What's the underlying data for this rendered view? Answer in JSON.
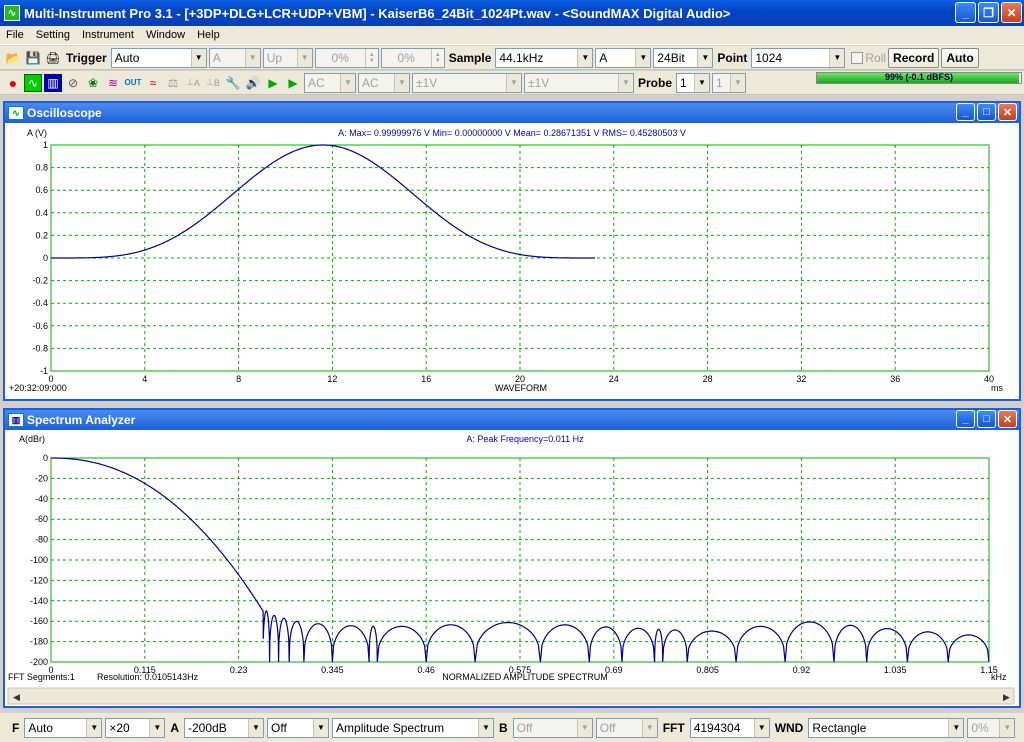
{
  "window": {
    "title": "Multi-Instrument Pro 3.1   -   [+3DP+DLG+LCR+UDP+VBM]   -   KaiserB6_24Bit_1024Pt.wav   -   <SoundMAX Digital Audio>",
    "minimize": "_",
    "maximize": "❐",
    "close": "✕"
  },
  "menu": [
    "File",
    "Setting",
    "Instrument",
    "Window",
    "Help"
  ],
  "toolbar1": {
    "trigger_label": "Trigger",
    "trigger_value": "Auto",
    "channel": "A",
    "edge": "Up",
    "pct1": "0%",
    "pct2": "0%",
    "sample_label": "Sample",
    "sample_value": "44.1kHz",
    "chan2": "A",
    "bits": "24Bit",
    "point_label": "Point",
    "point_value": "1024",
    "roll_label": "Roll",
    "record_label": "Record",
    "auto_label": "Auto"
  },
  "toolbar2": {
    "a_cal": "A",
    "b_cal": "B",
    "coupling_a": "AC",
    "coupling_b": "AC",
    "range_a": "±1V",
    "range_b": "±1V",
    "probe_label": "Probe",
    "probe_a": "1",
    "probe_b": "1",
    "meter_text": "99% (-0.1 dBFS)",
    "meter_level": 0.99
  },
  "scope": {
    "title": "Oscilloscope",
    "ylabel": "A (V)",
    "stats": "A: Max= 0.99999976 V  Min= 0.00000000 V  Mean= 0.28671351 V  RMS= 0.45280503 V",
    "time": "+20:32:09:000",
    "xlabel": "WAVEFORM",
    "xunit": "ms",
    "logo": "Mi"
  },
  "spectrum": {
    "title": "Spectrum Analyzer",
    "ylabel": "A(dBr)",
    "stats": "A: Peak Frequency=0.011 Hz",
    "segments": "FFT Segments:1",
    "resolution": "Resolution: 0.0105143Hz",
    "xlabel": "NORMALIZED AMPLITUDE SPECTRUM",
    "xunit": "kHz",
    "logo": "Mi"
  },
  "statusbar": {
    "f_label": "F",
    "f_value": "Auto",
    "zoom": "×20",
    "a_label": "A",
    "a_value": "-200dB",
    "off1": "Off",
    "mode": "Amplitude Spectrum",
    "b_label": "B",
    "b_value": "Off",
    "off2": "Off",
    "fft_label": "FFT",
    "fft_value": "4194304",
    "wnd_label": "WND",
    "wnd_value": "Rectangle",
    "pct": "0%"
  },
  "chart_data": [
    {
      "type": "line",
      "title": "",
      "xlabel": "WAVEFORM",
      "ylabel": "A (V)",
      "xlim": [
        0,
        40
      ],
      "ylim": [
        -1,
        1
      ],
      "x_ticks": [
        "0",
        "4",
        "8",
        "12",
        "16",
        "20",
        "24",
        "28",
        "32",
        "36",
        "40"
      ],
      "y_ticks": [
        "1",
        "0.8",
        "0.6",
        "0.4",
        "0.2",
        "0",
        "-0.2",
        "-0.4",
        "-0.6",
        "-0.8",
        "-1"
      ],
      "grid": true,
      "series": [
        {
          "x": [
            0,
            2,
            3.8,
            6,
            8,
            10,
            11.6,
            13.2,
            15.2,
            17.2,
            19.4,
            21,
            23.2
          ],
          "y": [
            0,
            0,
            0.01,
            0.12,
            0.44,
            0.86,
            1.0,
            0.86,
            0.44,
            0.12,
            0.01,
            0,
            0
          ]
        }
      ]
    },
    {
      "type": "line",
      "title": "",
      "xlabel": "NORMALIZED AMPLITUDE SPECTRUM",
      "ylabel": "A(dBr)",
      "xlim": [
        0,
        1.15
      ],
      "ylim": [
        -200,
        0
      ],
      "x_ticks": [
        "0",
        "0.115",
        "0.23",
        "0.345",
        "0.46",
        "0.575",
        "0.69",
        "0.805",
        "0.92",
        "1.035",
        "1.15"
      ],
      "y_ticks": [
        "0",
        "-20",
        "-40",
        "-60",
        "-80",
        "-100",
        "-120",
        "-140",
        "-160",
        "-180",
        "-200"
      ],
      "grid": true,
      "series": [
        {
          "x": [
            0,
            0.05,
            0.1,
            0.15,
            0.2,
            0.23,
            0.26,
            0.275,
            0.3,
            0.345,
            0.4,
            0.46,
            0.52,
            0.575,
            0.64,
            0.69,
            0.75,
            0.805,
            0.86,
            0.92,
            0.98,
            1.035,
            1.1,
            1.15
          ],
          "y": [
            0,
            -4,
            -15,
            -35,
            -70,
            -105,
            -148,
            -155,
            -160,
            -164,
            -165,
            -165,
            -162,
            -161,
            -164,
            -166,
            -168,
            -170,
            -166,
            -160,
            -164,
            -168,
            -172,
            -175
          ]
        }
      ]
    }
  ]
}
